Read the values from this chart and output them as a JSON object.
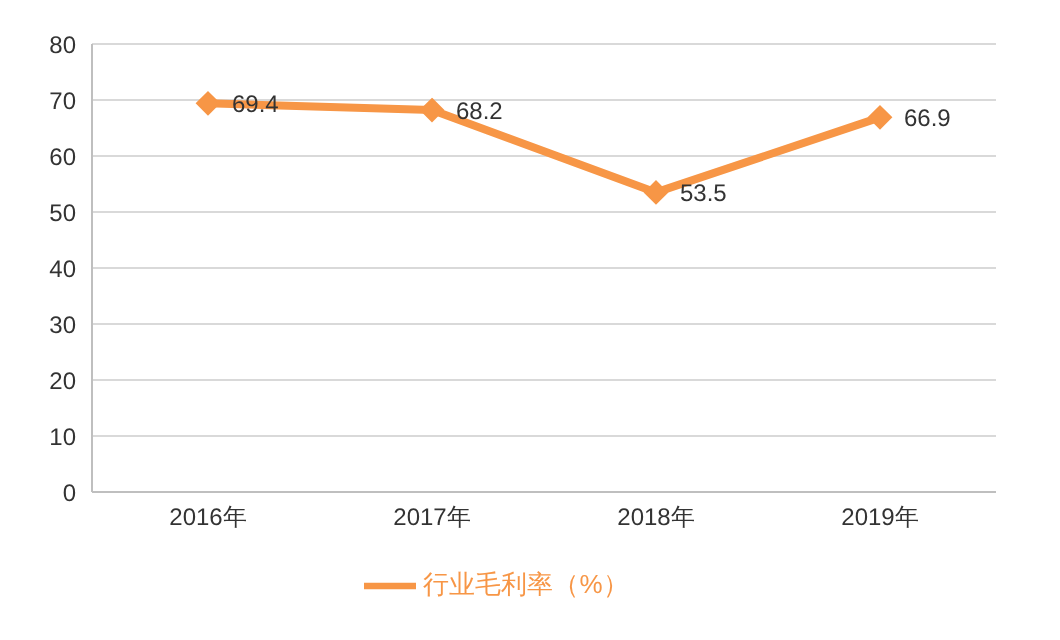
{
  "chart_data": {
    "type": "line",
    "categories": [
      "2016年",
      "2017年",
      "2018年",
      "2019年"
    ],
    "series": [
      {
        "name": "行业毛利率（%）",
        "color": "#f79646",
        "values": [
          69.4,
          68.2,
          53.5,
          66.9
        ]
      }
    ],
    "ylim": [
      0,
      80
    ],
    "yticks": [
      0,
      10,
      20,
      30,
      40,
      50,
      60,
      70,
      80
    ],
    "grid": "y",
    "legend": "bottom",
    "marker": "diamond",
    "data_labels": true
  }
}
